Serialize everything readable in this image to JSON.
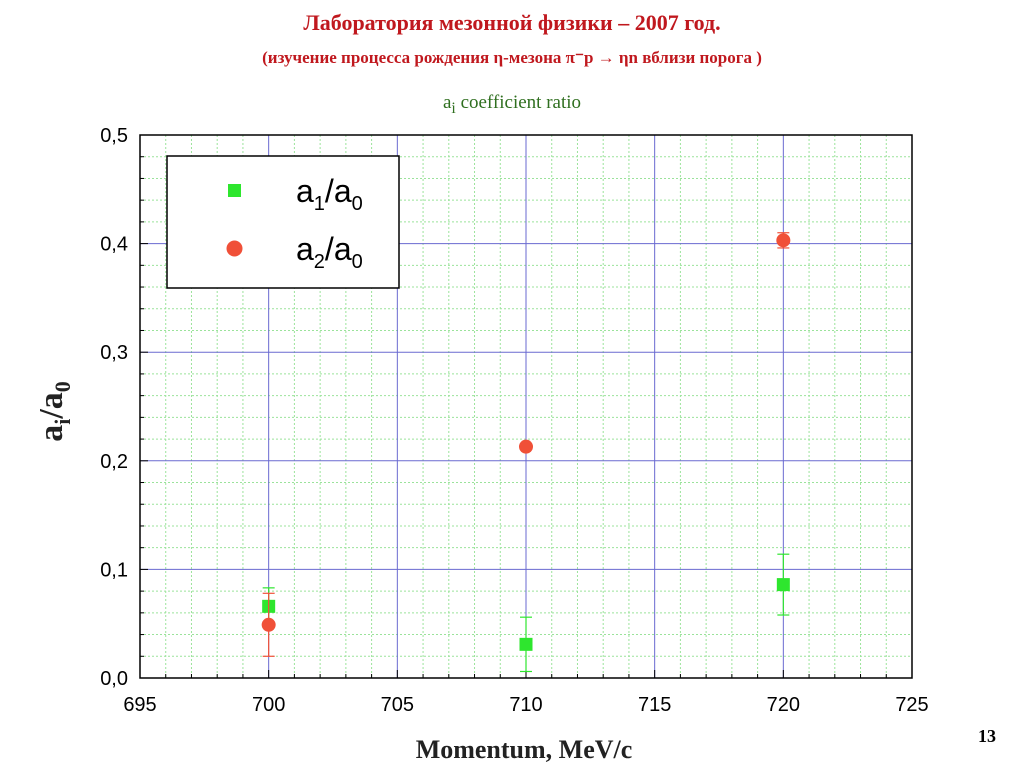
{
  "slide": {
    "title": "Лаборатория мезонной физики – 2007 год.",
    "subtitle": "(изучение процесса рождения η-мезона π⁻p → ηn вблизи порога )",
    "page_number": "13"
  },
  "chart_data": {
    "type": "scatter",
    "caption": {
      "base": "a",
      "sub": "i",
      "rest": " coefficient ratio"
    },
    "xlabel": "Momentum, MeV/c",
    "ylabel": {
      "base": "a",
      "sub1": "i",
      "slash": "/",
      "base2": "a",
      "sub2": "0"
    },
    "xlim": [
      695,
      725
    ],
    "ylim": [
      0.0,
      0.5
    ],
    "x_ticks": [
      "695",
      "700",
      "705",
      "710",
      "715",
      "720",
      "725"
    ],
    "y_ticks": [
      "0,0",
      "0,1",
      "0,2",
      "0,3",
      "0,4",
      "0,5"
    ],
    "grid": true,
    "legend_position": "top-left",
    "series": [
      {
        "name": {
          "base": "a",
          "sub1": "1",
          "slash": "/",
          "base2": "a",
          "sub2": "0"
        },
        "marker": "square",
        "color": "#2ee62e",
        "points": [
          {
            "x": 700,
            "y": 0.066,
            "err": 0.017
          },
          {
            "x": 710,
            "y": 0.031,
            "err": 0.025
          },
          {
            "x": 720,
            "y": 0.086,
            "err": 0.028
          }
        ]
      },
      {
        "name": {
          "base": "a",
          "sub1": "2",
          "slash": "/",
          "base2": "a",
          "sub2": "0"
        },
        "marker": "circle",
        "color": "#f05038",
        "points": [
          {
            "x": 700,
            "y": 0.049,
            "err": 0.029
          },
          {
            "x": 710,
            "y": 0.213,
            "err": 0.0
          },
          {
            "x": 720,
            "y": 0.403,
            "err": 0.007
          }
        ]
      }
    ]
  }
}
